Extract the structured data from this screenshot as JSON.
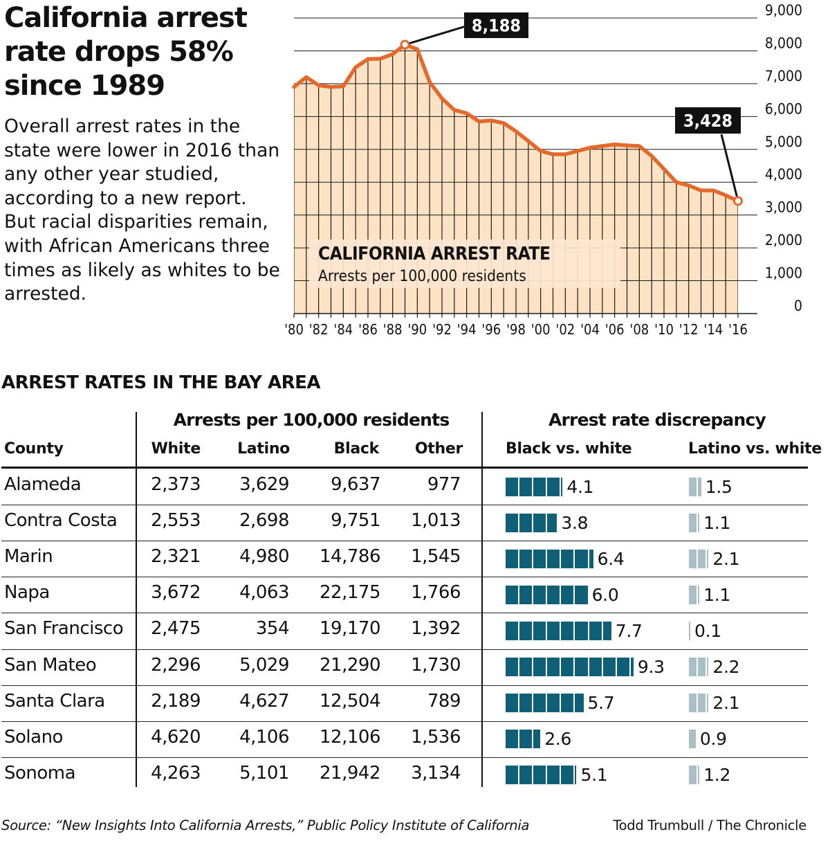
{
  "headline": "California arrest rate drops 58% since 1989",
  "dek": "Overall arrest rates in the state were lower in 2016 than any other year studied, according to a new report. But racial disparities remain, with African Americans three times as likely as whites to be arrested.",
  "colors": {
    "line": "#e36a2c",
    "area": "#fde3c4",
    "bar_black": "#0f5f77",
    "bar_latino": "#a9bfc5",
    "callout_bg": "#111111"
  },
  "chart_data": [
    {
      "type": "area",
      "title": "CALIFORNIA ARREST RATE",
      "subtitle": "Arrests per 100,000 residents",
      "x": [
        1980,
        1981,
        1982,
        1983,
        1984,
        1985,
        1986,
        1987,
        1988,
        1989,
        1990,
        1991,
        1992,
        1993,
        1994,
        1995,
        1996,
        1997,
        1998,
        1999,
        2000,
        2001,
        2002,
        2003,
        2004,
        2005,
        2006,
        2007,
        2008,
        2009,
        2010,
        2011,
        2012,
        2013,
        2014,
        2015,
        2016
      ],
      "values": [
        6900,
        7200,
        6950,
        6900,
        6920,
        7500,
        7750,
        7760,
        7900,
        8188,
        8050,
        7050,
        6550,
        6200,
        6100,
        5850,
        5880,
        5800,
        5550,
        5250,
        4950,
        4850,
        4850,
        4950,
        5050,
        5100,
        5150,
        5120,
        5100,
        4800,
        4400,
        4000,
        3900,
        3750,
        3750,
        3600,
        3428
      ],
      "x_tick_labels": [
        "'80",
        "'82",
        "'84",
        "'86",
        "'88",
        "'90",
        "'92",
        "'94",
        "'96",
        "'98",
        "'00",
        "'02",
        "'04",
        "'06",
        "'08",
        "'10",
        "'12",
        "'14",
        "'16"
      ],
      "y_tick_labels": [
        "0",
        "1,000",
        "2,000",
        "3,000",
        "4,000",
        "5,000",
        "6,000",
        "7,000",
        "8,000",
        "9,000"
      ],
      "ylim": [
        0,
        9000
      ],
      "xlim": [
        1980,
        2016
      ],
      "grid": true,
      "annotations": [
        {
          "label": "8,188",
          "x": 1989,
          "y": 8188
        },
        {
          "label": "3,428",
          "x": 2016,
          "y": 3428
        }
      ]
    },
    {
      "type": "table",
      "title": "ARREST RATES IN THE BAY AREA",
      "group_headers": [
        "Arrests per 100,000 residents",
        "Arrest rate discrepancy"
      ],
      "columns": [
        "County",
        "White",
        "Latino",
        "Black",
        "Other",
        "Black vs. white",
        "Latino vs. white"
      ],
      "rows": [
        {
          "county": "Alameda",
          "white": "2,373",
          "latino": "3,629",
          "black": "9,637",
          "other": "977",
          "bw": 4.1,
          "bw_label": "4.1",
          "lw": 1.5,
          "lw_label": "1.5"
        },
        {
          "county": "Contra Costa",
          "white": "2,553",
          "latino": "2,698",
          "black": "9,751",
          "other": "1,013",
          "bw": 3.8,
          "bw_label": "3.8",
          "lw": 1.1,
          "lw_label": "1.1"
        },
        {
          "county": "Marin",
          "white": "2,321",
          "latino": "4,980",
          "black": "14,786",
          "other": "1,545",
          "bw": 6.4,
          "bw_label": "6.4",
          "lw": 2.1,
          "lw_label": "2.1"
        },
        {
          "county": "Napa",
          "white": "3,672",
          "latino": "4,063",
          "black": "22,175",
          "other": "1,766",
          "bw": 6.0,
          "bw_label": "6.0",
          "lw": 1.1,
          "lw_label": "1.1"
        },
        {
          "county": "San Francisco",
          "white": "2,475",
          "latino": "354",
          "black": "19,170",
          "other": "1,392",
          "bw": 7.7,
          "bw_label": "7.7",
          "lw": 0.1,
          "lw_label": "0.1"
        },
        {
          "county": "San Mateo",
          "white": "2,296",
          "latino": "5,029",
          "black": "21,290",
          "other": "1,730",
          "bw": 9.3,
          "bw_label": "9.3",
          "lw": 2.2,
          "lw_label": "2.2"
        },
        {
          "county": "Santa Clara",
          "white": "2,189",
          "latino": "4,627",
          "black": "12,504",
          "other": "789",
          "bw": 5.7,
          "bw_label": "5.7",
          "lw": 2.1,
          "lw_label": "2.1"
        },
        {
          "county": "Solano",
          "white": "4,620",
          "latino": "4,106",
          "black": "12,106",
          "other": "1,536",
          "bw": 2.6,
          "bw_label": "2.6",
          "lw": 0.9,
          "lw_label": "0.9"
        },
        {
          "county": "Sonoma",
          "white": "4,263",
          "latino": "5,101",
          "black": "21,942",
          "other": "3,134",
          "bw": 5.1,
          "bw_label": "5.1",
          "lw": 1.2,
          "lw_label": "1.2"
        }
      ]
    }
  ],
  "footer": {
    "source": "Source: “New Insights Into California Arrests,” Public Policy Institute of California",
    "credit": "Todd Trumbull / The Chronicle"
  }
}
